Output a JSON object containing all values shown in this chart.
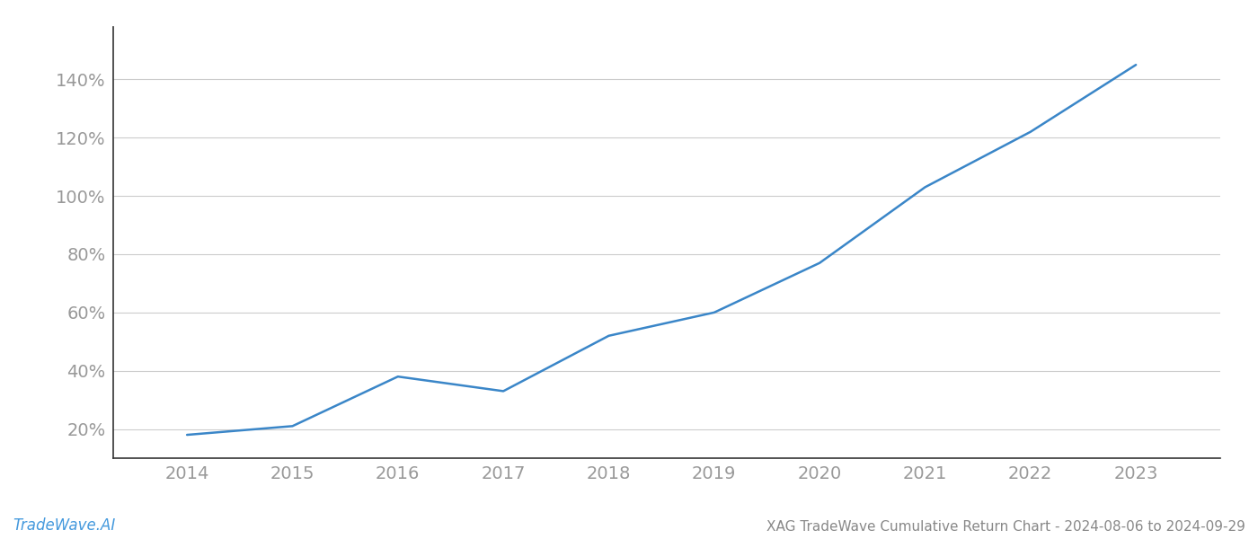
{
  "x_years": [
    2014,
    2015,
    2016,
    2017,
    2018,
    2019,
    2020,
    2021,
    2022,
    2023
  ],
  "y_values": [
    0.18,
    0.21,
    0.38,
    0.33,
    0.52,
    0.6,
    0.77,
    1.03,
    1.22,
    1.45
  ],
  "line_color": "#3a86c8",
  "line_width": 1.8,
  "background_color": "#ffffff",
  "grid_color": "#cccccc",
  "title_text": "XAG TradeWave Cumulative Return Chart - 2024-08-06 to 2024-09-29",
  "watermark_text": "TradeWave.AI",
  "watermark_color": "#4499dd",
  "title_color": "#888888",
  "watermark_fontsize": 12,
  "title_fontsize": 11,
  "tick_color": "#999999",
  "tick_fontsize": 14,
  "ylim": [
    0.1,
    1.58
  ],
  "yticks": [
    0.2,
    0.4,
    0.6,
    0.8,
    1.0,
    1.2,
    1.4
  ],
  "ytick_labels": [
    "20%",
    "40%",
    "60%",
    "80%",
    "100%",
    "120%",
    "140%"
  ],
  "xticks": [
    2014,
    2015,
    2016,
    2017,
    2018,
    2019,
    2020,
    2021,
    2022,
    2023
  ],
  "xlim": [
    2013.3,
    2023.8
  ],
  "left_spine_color": "#333333",
  "bottom_spine_color": "#333333"
}
